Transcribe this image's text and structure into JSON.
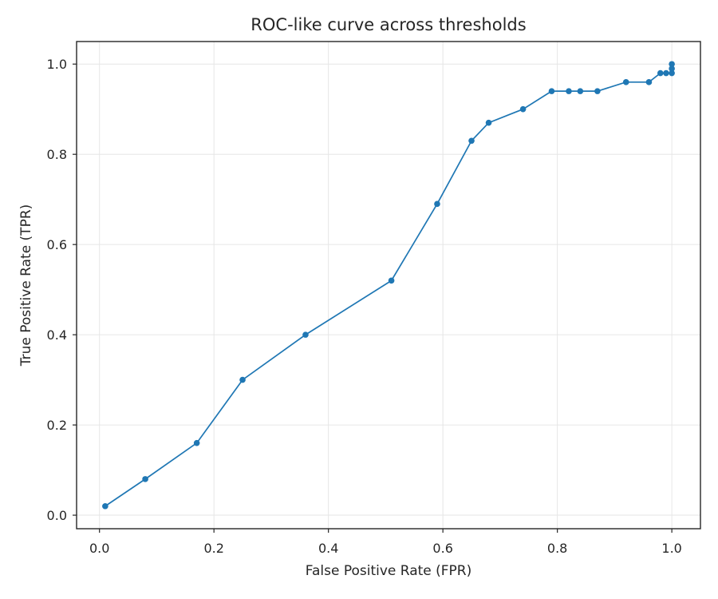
{
  "chart_data": {
    "type": "line",
    "title": "ROC-like curve across thresholds",
    "xlabel": "False Positive Rate (FPR)",
    "ylabel": "True Positive Rate (TPR)",
    "xlim": [
      -0.04,
      1.05
    ],
    "ylim": [
      -0.03,
      1.05
    ],
    "xticks": [
      0.0,
      0.2,
      0.4,
      0.6,
      0.8,
      1.0
    ],
    "yticks": [
      0.0,
      0.2,
      0.4,
      0.6,
      0.8,
      1.0
    ],
    "xtick_labels": [
      "0.0",
      "0.2",
      "0.4",
      "0.6",
      "0.8",
      "1.0"
    ],
    "ytick_labels": [
      "0.0",
      "0.2",
      "0.4",
      "0.6",
      "0.8",
      "1.0"
    ],
    "grid": true,
    "markers": true,
    "color": "#1f77b4",
    "series": [
      {
        "x": [
          0.01,
          0.08,
          0.17,
          0.25,
          0.36,
          0.51,
          0.59,
          0.65,
          0.68,
          0.74,
          0.79,
          0.82,
          0.84,
          0.87,
          0.92,
          0.96,
          0.98,
          0.99,
          1.0,
          1.0,
          1.0
        ],
        "y": [
          0.02,
          0.08,
          0.16,
          0.3,
          0.4,
          0.52,
          0.69,
          0.83,
          0.87,
          0.9,
          0.94,
          0.94,
          0.94,
          0.94,
          0.96,
          0.96,
          0.98,
          0.98,
          0.98,
          0.99,
          1.0
        ]
      }
    ]
  }
}
